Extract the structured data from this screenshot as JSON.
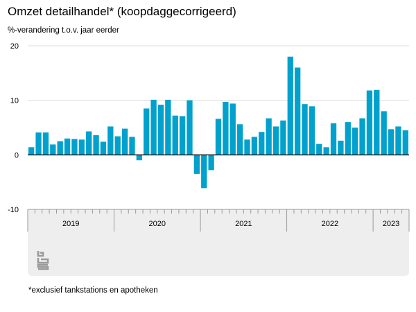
{
  "colors": {
    "bar": "#00a1cd",
    "grid": "#dddddd",
    "zero_line": "#222222",
    "axis_band": "#eeeeee",
    "logo_band": "#eeeeee"
  },
  "logo_icon": "cbs-logo-icon",
  "chart_data": {
    "type": "bar",
    "title": "Omzet detailhandel* (koopdaggecorrigeerd)",
    "subtitle": "%-verandering t.o.v. jaar eerder",
    "footnote": "*exclusief tankstations en apotheken",
    "ylim": [
      -10,
      20
    ],
    "yticks": [
      20,
      10,
      0,
      -10
    ],
    "year_groups": [
      {
        "label": "2019",
        "months": 12
      },
      {
        "label": "2020",
        "months": 12
      },
      {
        "label": "2021",
        "months": 12
      },
      {
        "label": "2022",
        "months": 12
      },
      {
        "label": "2023",
        "months": 5
      }
    ],
    "categories": [
      "2019-01",
      "2019-02",
      "2019-03",
      "2019-04",
      "2019-05",
      "2019-06",
      "2019-07",
      "2019-08",
      "2019-09",
      "2019-10",
      "2019-11",
      "2019-12",
      "2020-01",
      "2020-02",
      "2020-03",
      "2020-04",
      "2020-05",
      "2020-06",
      "2020-07",
      "2020-08",
      "2020-09",
      "2020-10",
      "2020-11",
      "2020-12",
      "2021-01",
      "2021-02",
      "2021-03",
      "2021-04",
      "2021-05",
      "2021-06",
      "2021-07",
      "2021-08",
      "2021-09",
      "2021-10",
      "2021-11",
      "2021-12",
      "2022-01",
      "2022-02",
      "2022-03",
      "2022-04",
      "2022-05",
      "2022-06",
      "2022-07",
      "2022-08",
      "2022-09",
      "2022-10",
      "2022-11",
      "2022-12",
      "2023-01",
      "2023-02",
      "2023-03",
      "2023-04",
      "2023-05"
    ],
    "values": [
      1.4,
      4.1,
      4.1,
      1.9,
      2.5,
      3.0,
      2.9,
      2.8,
      4.3,
      3.6,
      2.4,
      5.2,
      3.4,
      4.8,
      3.3,
      -1.0,
      8.5,
      10.1,
      9.2,
      10.1,
      7.2,
      7.1,
      10.0,
      -3.5,
      -6.1,
      -2.8,
      6.6,
      9.7,
      9.4,
      5.6,
      2.8,
      3.3,
      4.2,
      6.7,
      5.2,
      6.3,
      18.0,
      16.0,
      9.3,
      8.9,
      2.0,
      1.4,
      5.8,
      2.6,
      6.0,
      5.0,
      6.7,
      11.8,
      11.9,
      8.0,
      4.7,
      5.2,
      4.5
    ]
  }
}
